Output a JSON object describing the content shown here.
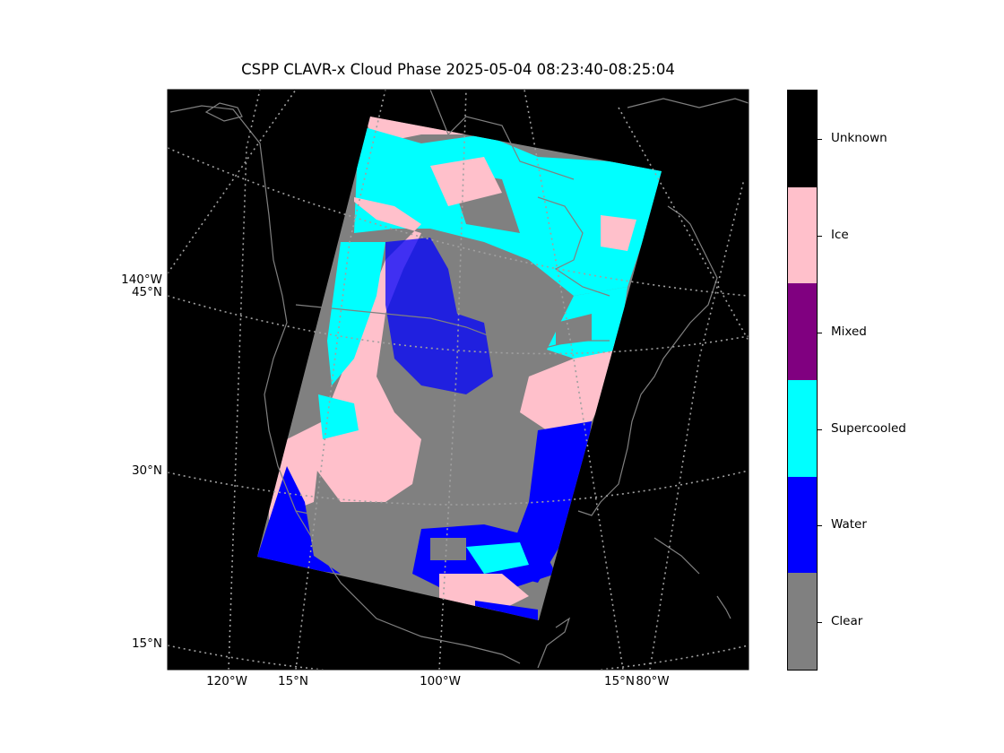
{
  "title": "CSPP CLAVR-x Cloud Phase 2025-05-04 08:23:40-08:25:04",
  "map": {
    "background_color": "#000000",
    "coastline_color": "#808080",
    "graticule_color": "#a0a0a0",
    "lat_labels": [
      "140°W",
      "45°N",
      "30°N",
      "15°N"
    ],
    "lon_labels": [
      "120°W",
      "15°N",
      "100°W",
      "15°N",
      "80°W"
    ]
  },
  "colorbar": {
    "categories": [
      {
        "name": "Unknown",
        "color": "#000000"
      },
      {
        "name": "Ice",
        "color": "#ffc0cb"
      },
      {
        "name": "Mixed",
        "color": "#800080"
      },
      {
        "name": "Supercooled",
        "color": "#00ffff"
      },
      {
        "name": "Water",
        "color": "#0000ff"
      },
      {
        "name": "Clear",
        "color": "#808080"
      }
    ]
  }
}
